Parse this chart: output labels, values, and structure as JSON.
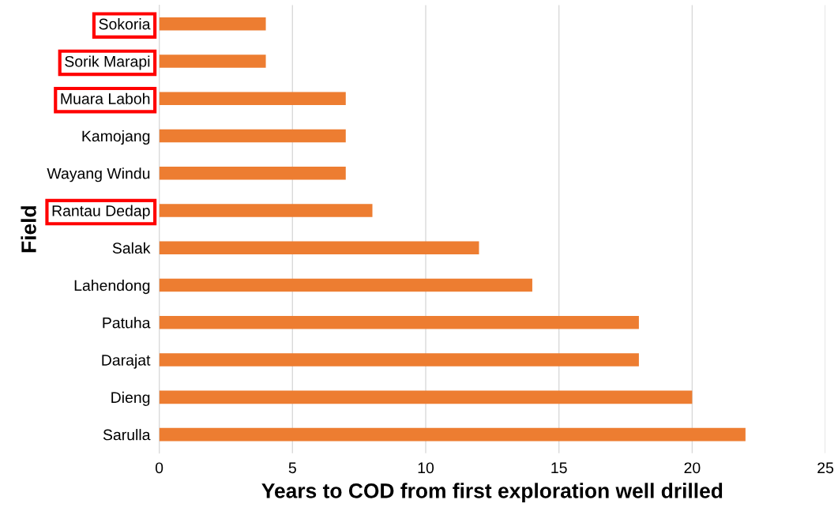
{
  "chart_data": {
    "type": "bar",
    "orientation": "horizontal",
    "categories": [
      "Sokoria",
      "Sorik Marapi",
      "Muara Laboh",
      "Kamojang",
      "Wayang Windu",
      "Rantau Dedap",
      "Salak",
      "Lahendong",
      "Patuha",
      "Darajat",
      "Dieng",
      "Sarulla"
    ],
    "values": [
      4,
      4,
      7,
      7,
      7,
      8,
      12,
      14,
      18,
      18,
      20,
      22
    ],
    "color": "#ed7d31",
    "xlim": [
      0,
      25
    ],
    "xticks": [
      0,
      5,
      10,
      15,
      20,
      25
    ],
    "xlabel": "Years to COD from first exploration well drilled",
    "ylabel": "Field",
    "grid": "x"
  }
}
